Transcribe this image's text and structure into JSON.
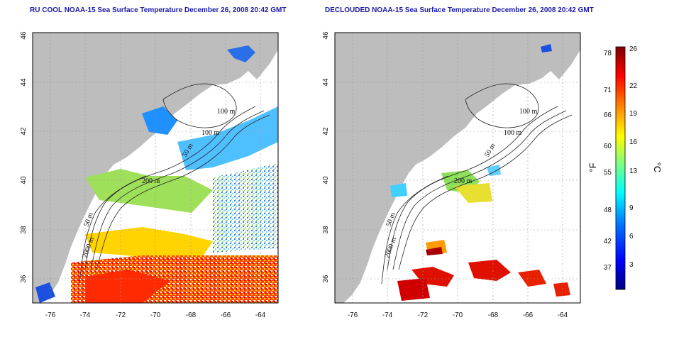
{
  "titles": {
    "left": "RU COOL NOAA-15 Sea Surface Temperature December 26, 2008 20:42 GMT",
    "right": "DECLOUDED NOAA-15 Sea Surface Temperature December 26, 2008 20:42 GMT"
  },
  "axes": {
    "lon_ticks": [
      "-76",
      "-74",
      "-72",
      "-70",
      "-68",
      "-66",
      "-64"
    ],
    "lat_ticks": [
      "36",
      "38",
      "40",
      "42",
      "44",
      "46"
    ]
  },
  "contour_labels": [
    "100 m",
    "100 m",
    "50 m",
    "200 m",
    "50 m",
    "2000 m"
  ],
  "colorbar": {
    "unit_f": "°F",
    "unit_c": "°C",
    "f_ticks": [
      "78",
      "71",
      "66",
      "60",
      "55",
      "48",
      "42",
      "37"
    ],
    "c_ticks": [
      "26",
      "22",
      "19",
      "16",
      "13",
      "9",
      "6",
      "3"
    ],
    "colors": [
      "#00007f",
      "#0000ff",
      "#007fff",
      "#00ffff",
      "#7fff7f",
      "#ffff00",
      "#ff7f00",
      "#ff0000",
      "#7f0000"
    ]
  },
  "colors": {
    "land": "#bdbdbd",
    "ocean": "#ffffff",
    "title": "#1a1aa8"
  }
}
